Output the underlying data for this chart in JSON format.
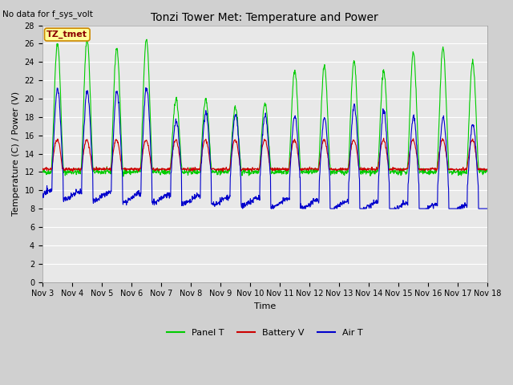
{
  "title": "Tonzi Tower Met: Temperature and Power",
  "xlabel": "Time",
  "ylabel": "Temperature (C) / Power (V)",
  "top_left_text": "No data for f_sys_volt",
  "annotation_label": "TZ_tmet",
  "ylim": [
    0,
    28
  ],
  "yticks": [
    0,
    2,
    4,
    6,
    8,
    10,
    12,
    14,
    16,
    18,
    20,
    22,
    24,
    26,
    28
  ],
  "xtick_labels": [
    "Nov 3",
    "Nov 4",
    "Nov 5",
    "Nov 6",
    "Nov 7",
    "Nov 8",
    "Nov 9",
    "Nov 10",
    "Nov 11",
    "Nov 12",
    "Nov 13",
    "Nov 14",
    "Nov 15",
    "Nov 16",
    "Nov 17",
    "Nov 18"
  ],
  "n_days": 15,
  "colors": {
    "panel_t": "#00cc00",
    "battery_v": "#cc0000",
    "air_t": "#0000cc",
    "fig_bg": "#d0d0d0",
    "plot_bg": "#e8e8e8",
    "grid": "#ffffff",
    "annotation_bg": "#ffff99",
    "annotation_border": "#cc8800",
    "annotation_text": "#8B0000"
  },
  "panel_peak_heights": [
    14,
    14.5,
    13.5,
    14.5,
    8,
    8,
    7,
    7.5,
    11,
    11.5,
    12,
    11,
    13,
    13.5,
    12
  ],
  "air_peak_heights": [
    9,
    9,
    9,
    9.5,
    6,
    7,
    7,
    7,
    7,
    7,
    8.5,
    8,
    7.5,
    7.5,
    7
  ],
  "legend": [
    {
      "label": "Panel T",
      "color": "#00cc00"
    },
    {
      "label": "Battery V",
      "color": "#cc0000"
    },
    {
      "label": "Air T",
      "color": "#0000cc"
    }
  ]
}
